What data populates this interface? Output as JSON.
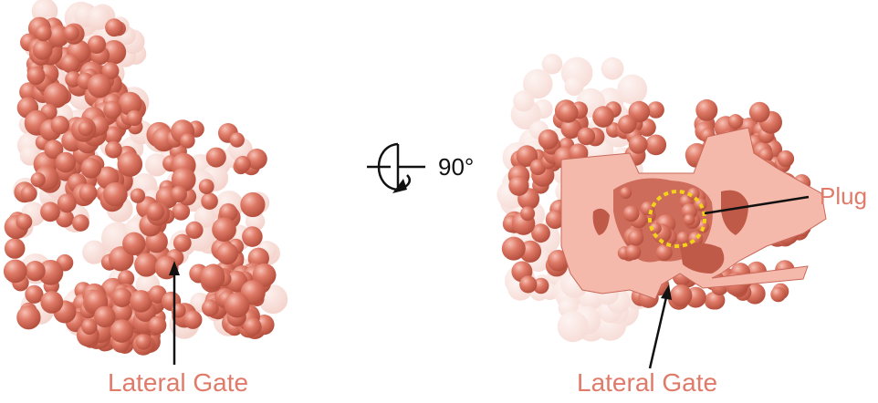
{
  "labels": {
    "left_lateral_gate": "Lateral Gate",
    "right_lateral_gate": "Lateral Gate",
    "rotation": "90°",
    "plug": "Plug"
  },
  "colors": {
    "protein_surface": "#d9705e",
    "protein_highlight": "#f4b3a6",
    "cut_surface": "#f5b9ab",
    "label_text": "#e07a69",
    "plug_circle": "#f2d21b",
    "arrow": "#111111"
  },
  "icons": {
    "rotation": "rotate-90-icon"
  }
}
